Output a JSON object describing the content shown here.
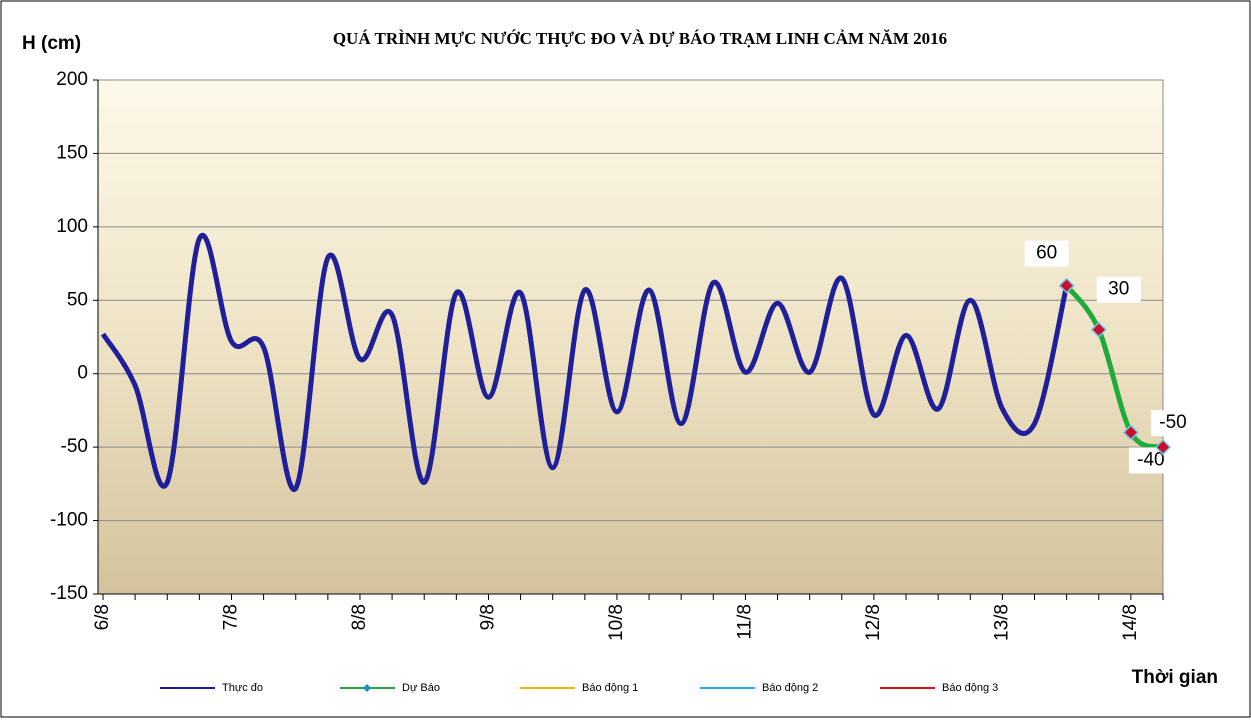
{
  "chart_data": {
    "type": "line",
    "title": "QUÁ TRÌNH  MỰC NƯỚC THỰC ĐO VÀ DỰ BÁO TRẠM  LINH CẢM NĂM 2016",
    "y_label": "H (cm)",
    "x_label": "Thời gian",
    "categories": [
      "6/8",
      null,
      null,
      null,
      "7/8",
      null,
      null,
      null,
      "8/8",
      null,
      null,
      null,
      "9/8",
      null,
      null,
      null,
      "10/8",
      null,
      null,
      null,
      "11/8",
      null,
      null,
      null,
      "12/8",
      null,
      null,
      null,
      "13/8",
      null,
      null,
      null,
      "14/8",
      null
    ],
    "series": [
      {
        "name": "Thực đo",
        "color": "#1f1f9a",
        "values": [
          27,
          -8,
          -74,
          92,
          22,
          18,
          -78,
          79,
          10,
          40,
          -74,
          55,
          -16,
          55,
          -64,
          57,
          -26,
          57,
          -34,
          62,
          1,
          48,
          1,
          65,
          -28,
          26,
          -24,
          50,
          -24,
          -34,
          60,
          null,
          null,
          null
        ]
      },
      {
        "name": "Dự Báo",
        "color": "#1fab3c",
        "values": [
          null,
          null,
          null,
          null,
          null,
          null,
          null,
          null,
          null,
          null,
          null,
          null,
          null,
          null,
          null,
          null,
          null,
          null,
          null,
          null,
          null,
          null,
          null,
          null,
          null,
          null,
          null,
          null,
          null,
          null,
          60,
          30,
          -40,
          -50
        ],
        "markers": true,
        "data_labels": true
      },
      {
        "name": "Báo động 1",
        "color": "#f5b800"
      },
      {
        "name": "Báo động 2",
        "color": "#22aee8"
      },
      {
        "name": "Báo động 3",
        "color": "#e01010"
      }
    ],
    "ylim": [
      -150,
      200
    ],
    "yticks": [
      -150,
      -100,
      -50,
      0,
      50,
      100,
      150,
      200
    ],
    "grid": true,
    "legend": "bottom"
  }
}
